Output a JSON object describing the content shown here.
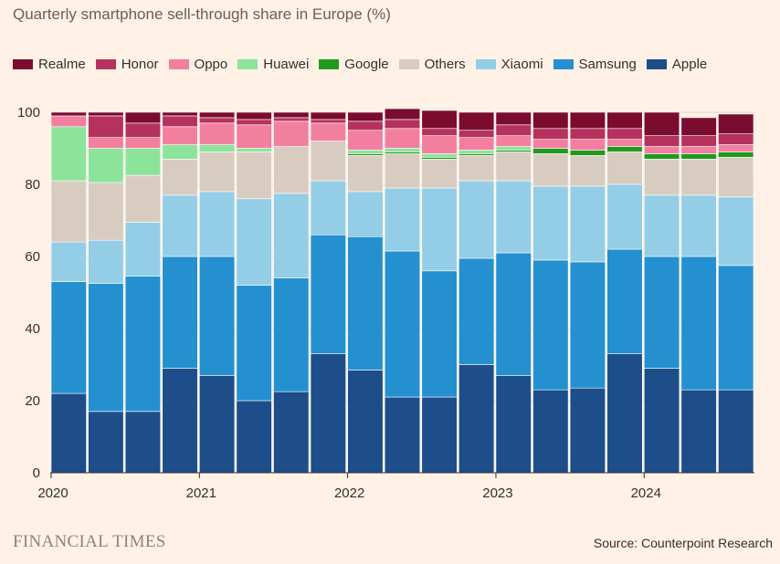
{
  "chart_data": {
    "type": "bar",
    "stacked": true,
    "title": "Quarterly smartphone sell-through share in Europe (%)",
    "ylim": [
      0,
      100
    ],
    "yticks": [
      0,
      20,
      40,
      60,
      80,
      100
    ],
    "xtick_labels": [
      {
        "label": "2020",
        "index": 0
      },
      {
        "label": "2021",
        "index": 4
      },
      {
        "label": "2022",
        "index": 8
      },
      {
        "label": "2023",
        "index": 12
      },
      {
        "label": "2024",
        "index": 16
      }
    ],
    "grid": "horizontal",
    "legend_position": "top",
    "categories": [
      "2020 Q1",
      "2020 Q2",
      "2020 Q3",
      "2020 Q4",
      "2021 Q1",
      "2021 Q2",
      "2021 Q3",
      "2021 Q4",
      "2022 Q1",
      "2022 Q2",
      "2022 Q3",
      "2022 Q4",
      "2023 Q1",
      "2023 Q2",
      "2023 Q3",
      "2023 Q4",
      "2024 Q1",
      "2024 Q2",
      "2024 Q3"
    ],
    "series": [
      {
        "name": "Apple",
        "color": "#1d4e89",
        "values": [
          22,
          17,
          17,
          29,
          27,
          20,
          22.5,
          33,
          28.5,
          21,
          21,
          30,
          27,
          23,
          23.5,
          33,
          29,
          23,
          23
        ]
      },
      {
        "name": "Samsung",
        "color": "#2490d0",
        "values": [
          31,
          35.5,
          37.5,
          31,
          33,
          32,
          31.5,
          33,
          37,
          40.5,
          35,
          29.5,
          34,
          36,
          35,
          29,
          31,
          37,
          34.5
        ]
      },
      {
        "name": "Xiaomi",
        "color": "#94cde6",
        "values": [
          11,
          12,
          15,
          17,
          18,
          24,
          23.5,
          15,
          12.5,
          17.5,
          23,
          21.5,
          20,
          20.5,
          21,
          18,
          17,
          17,
          19
        ]
      },
      {
        "name": "Others",
        "color": "#d8ccc1",
        "values": [
          17,
          16,
          13,
          10,
          11,
          13,
          13,
          11,
          10,
          9.5,
          8,
          7,
          8,
          9,
          8.5,
          9,
          10,
          10,
          11
        ]
      },
      {
        "name": "Google",
        "color": "#1f9a1c",
        "values": [
          0,
          0,
          0,
          0,
          0,
          0,
          0,
          0,
          0.5,
          0.5,
          0.5,
          0.5,
          0.5,
          1.5,
          1.5,
          1.5,
          1.5,
          1.5,
          1.5
        ]
      },
      {
        "name": "Huawei",
        "color": "#8ce49a",
        "values": [
          15,
          9.5,
          7.5,
          4,
          2,
          1,
          0,
          0,
          1,
          1,
          1,
          1,
          1,
          0,
          0,
          0,
          0,
          0,
          0
        ]
      },
      {
        "name": "Oppo",
        "color": "#f37fa0",
        "values": [
          3,
          3,
          3,
          5,
          6,
          6.5,
          7,
          5,
          5.5,
          5.5,
          5,
          3.5,
          3,
          2.5,
          3,
          2,
          2,
          2,
          2
        ]
      },
      {
        "name": "Honor",
        "color": "#b5325e",
        "values": [
          0,
          6,
          4,
          3,
          1.5,
          1.5,
          1,
          1,
          2.5,
          2.5,
          2,
          2,
          3,
          3,
          3,
          3,
          3,
          3,
          3
        ]
      },
      {
        "name": "Realme",
        "color": "#7a0c30",
        "values": [
          1,
          1,
          3,
          1,
          1.5,
          2,
          1.5,
          2,
          2.5,
          3,
          5,
          5,
          3.5,
          4.5,
          4.5,
          4.5,
          6.5,
          5,
          5.5
        ]
      }
    ],
    "legend_order": [
      "Realme",
      "Honor",
      "Oppo",
      "Huawei",
      "Google",
      "Others",
      "Xiaomi",
      "Samsung",
      "Apple"
    ]
  },
  "footer": {
    "brand": "FINANCIAL TIMES",
    "source": "Source: Counterpoint Research"
  }
}
